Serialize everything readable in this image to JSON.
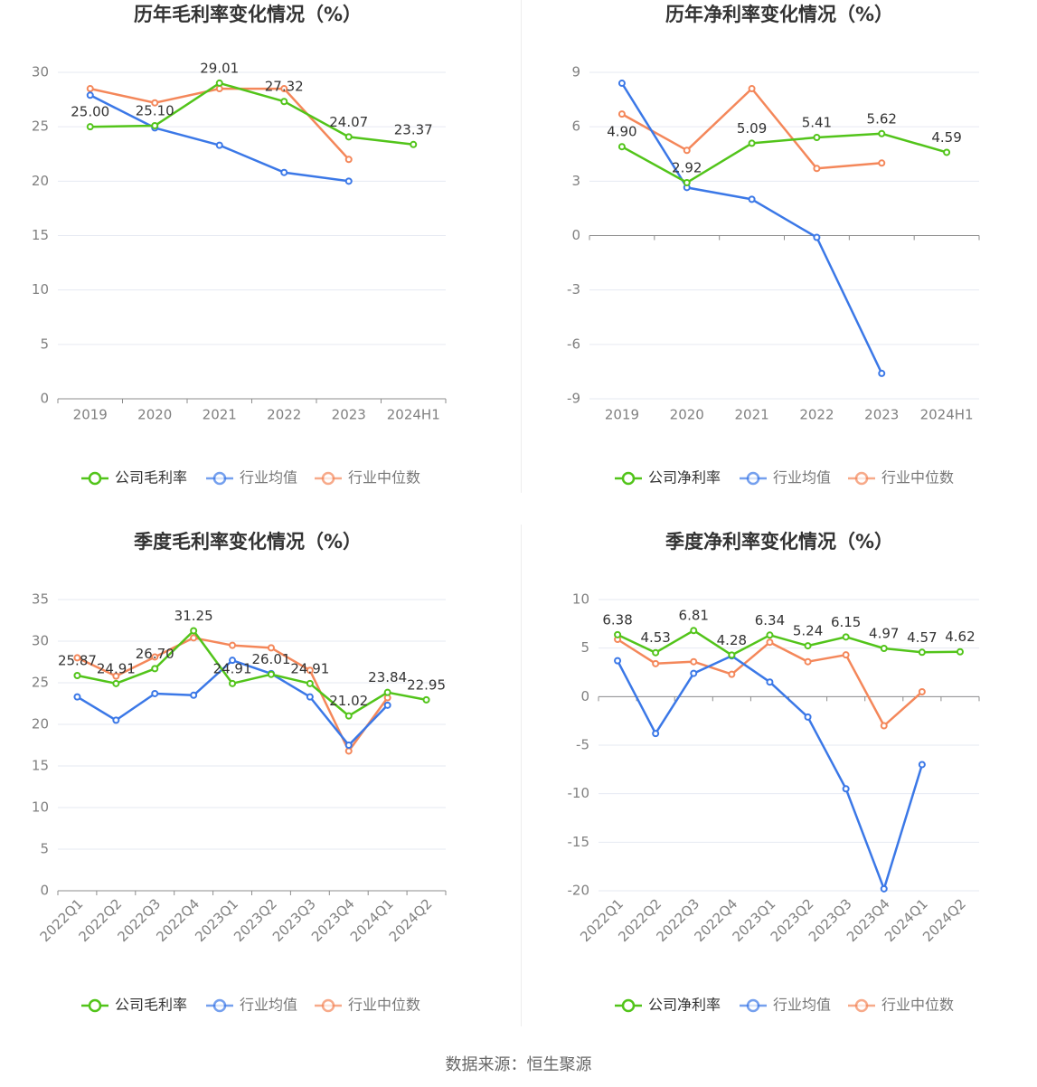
{
  "source": "数据来源：恒生聚源",
  "colors": {
    "company": "#52c41a",
    "avg": "#3b78e7",
    "median": "#f4875a",
    "grid": "#e6e9f2",
    "axis": "#8c8c8c",
    "tick": "#808080",
    "title": "#333333",
    "label": "#333333"
  },
  "chart_data": [
    {
      "type": "line",
      "title": "历年毛利率变化情况（%）",
      "categories": [
        "2019",
        "2020",
        "2021",
        "2022",
        "2023",
        "2024H1"
      ],
      "ylim": [
        0,
        30
      ],
      "yticks": [
        0,
        5,
        10,
        15,
        20,
        25,
        30
      ],
      "series": [
        {
          "name": "公司毛利率",
          "color": "#52c41a",
          "values": [
            25.0,
            25.1,
            29.01,
            27.32,
            24.07,
            23.37
          ],
          "labels": [
            "25.00",
            "25.10",
            "29.01",
            "27.32",
            "24.07",
            "23.37"
          ]
        },
        {
          "name": "行业均值",
          "color": "#3b78e7",
          "values": [
            27.9,
            24.9,
            23.3,
            20.8,
            20.0,
            null
          ]
        },
        {
          "name": "行业中位数",
          "color": "#f4875a",
          "values": [
            28.5,
            27.2,
            28.5,
            28.5,
            22.0,
            null
          ]
        }
      ]
    },
    {
      "type": "line",
      "title": "历年净利率变化情况（%）",
      "categories": [
        "2019",
        "2020",
        "2021",
        "2022",
        "2023",
        "2024H1"
      ],
      "ylim": [
        -9,
        9
      ],
      "yticks": [
        -9,
        -6,
        -3,
        0,
        3,
        6,
        9
      ],
      "series": [
        {
          "name": "公司净利率",
          "color": "#52c41a",
          "values": [
            4.9,
            2.92,
            5.09,
            5.41,
            5.62,
            4.59
          ],
          "labels": [
            "4.90",
            "2.92",
            "5.09",
            "5.41",
            "5.62",
            "4.59"
          ]
        },
        {
          "name": "行业均值",
          "color": "#3b78e7",
          "values": [
            8.4,
            2.65,
            2.0,
            -0.1,
            -7.6,
            null
          ]
        },
        {
          "name": "行业中位数",
          "color": "#f4875a",
          "values": [
            6.7,
            4.7,
            8.1,
            3.7,
            4.0,
            null
          ]
        }
      ]
    },
    {
      "type": "line",
      "title": "季度毛利率变化情况（%）",
      "categories": [
        "2022Q1",
        "2022Q2",
        "2022Q3",
        "2022Q4",
        "2023Q1",
        "2023Q2",
        "2023Q3",
        "2023Q4",
        "2024Q1",
        "2024Q2"
      ],
      "ylim": [
        0,
        35
      ],
      "yticks": [
        0,
        5,
        10,
        15,
        20,
        25,
        30,
        35
      ],
      "series": [
        {
          "name": "公司毛利率",
          "color": "#52c41a",
          "values": [
            25.87,
            24.91,
            26.7,
            31.25,
            24.91,
            26.01,
            24.91,
            21.02,
            23.84,
            22.95
          ],
          "labels": [
            "25.87",
            "24.91",
            "26.70",
            "31.25",
            "24.91",
            "26.01",
            "24.91",
            "21.02",
            "23.84",
            "22.95"
          ]
        },
        {
          "name": "行业均值",
          "color": "#3b78e7",
          "values": [
            23.3,
            20.5,
            23.7,
            23.5,
            27.7,
            26.1,
            23.3,
            17.5,
            22.3,
            null
          ]
        },
        {
          "name": "行业中位数",
          "color": "#f4875a",
          "values": [
            28.0,
            25.8,
            28.1,
            30.4,
            29.5,
            29.2,
            26.5,
            16.8,
            23.2,
            null
          ]
        }
      ]
    },
    {
      "type": "line",
      "title": "季度净利率变化情况（%）",
      "categories": [
        "2022Q1",
        "2022Q2",
        "2022Q3",
        "2022Q4",
        "2023Q1",
        "2023Q2",
        "2023Q3",
        "2023Q4",
        "2024Q1",
        "2024Q2"
      ],
      "ylim": [
        -20,
        10
      ],
      "yticks": [
        -20,
        -15,
        -10,
        -5,
        0,
        5,
        10
      ],
      "series": [
        {
          "name": "公司净利率",
          "color": "#52c41a",
          "values": [
            6.38,
            4.53,
            6.81,
            4.28,
            6.34,
            5.24,
            6.15,
            4.97,
            4.57,
            4.62
          ],
          "labels": [
            "6.38",
            "4.53",
            "6.81",
            "4.28",
            "6.34",
            "5.24",
            "6.15",
            "4.97",
            "4.57",
            "4.62"
          ]
        },
        {
          "name": "行业均值",
          "color": "#3b78e7",
          "values": [
            3.7,
            -3.8,
            2.4,
            4.2,
            1.5,
            -2.1,
            -9.5,
            -19.8,
            -7.0,
            null
          ]
        },
        {
          "name": "行业中位数",
          "color": "#f4875a",
          "values": [
            5.9,
            3.4,
            3.6,
            2.3,
            5.6,
            3.6,
            4.3,
            -3.0,
            0.5,
            null
          ]
        }
      ]
    }
  ]
}
